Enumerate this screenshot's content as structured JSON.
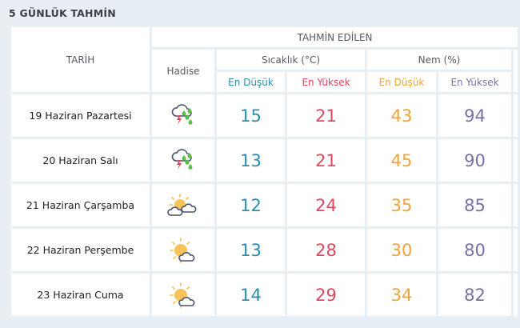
{
  "title": "5 GÜNLÜK TAHMİN",
  "header": {
    "date": "TARİH",
    "predicted": "TAHMİN EDİLEN",
    "event": "Hadise",
    "temp": "Sıcaklık (°C)",
    "humidity": "Nem (%)",
    "min": "En Düşük",
    "max": "En Yüksek"
  },
  "colors": {
    "temp_min": "#2b8db0",
    "temp_max": "#e3455f",
    "hum_min": "#eda43c",
    "hum_max": "#7a70a8"
  },
  "rows": [
    {
      "date": "19 Haziran Pazartesi",
      "icon": "thunderstorm-rain-icon",
      "tmin": "15",
      "tmax": "21",
      "hmin": "43",
      "hmax": "94"
    },
    {
      "date": "20 Haziran Salı",
      "icon": "thunderstorm-rain-icon",
      "tmin": "13",
      "tmax": "21",
      "hmin": "45",
      "hmax": "90"
    },
    {
      "date": "21 Haziran Çarşamba",
      "icon": "partly-cloudy-icon",
      "tmin": "12",
      "tmax": "24",
      "hmin": "35",
      "hmax": "85"
    },
    {
      "date": "22 Haziran Perşembe",
      "icon": "sun-cloud-icon",
      "tmin": "13",
      "tmax": "28",
      "hmin": "30",
      "hmax": "80"
    },
    {
      "date": "23 Haziran Cuma",
      "icon": "sun-cloud-icon",
      "tmin": "14",
      "tmax": "29",
      "hmin": "34",
      "hmax": "82"
    }
  ]
}
